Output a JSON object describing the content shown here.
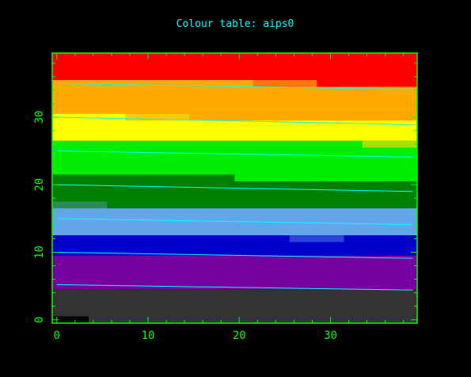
{
  "chart_data": {
    "type": "heatmap",
    "title": "Colour table: aips0",
    "xlabel": "",
    "ylabel": "",
    "xlim": [
      -0.5,
      39.5
    ],
    "ylim": [
      -0.5,
      39.5
    ],
    "xticks": [
      0,
      10,
      20,
      30
    ],
    "yticks": [
      0,
      10,
      20,
      30
    ],
    "colors": {
      "background": "#000000",
      "frame": "#00ff00",
      "title": "#00ffff",
      "contour": "#00ffff"
    },
    "bands": [
      {
        "y0": -0.5,
        "y1": 4.5,
        "color": "#333333"
      },
      {
        "y0": 4.5,
        "y1": 9.5,
        "color": "#7700a0"
      },
      {
        "y0": 9.5,
        "y1": 12.5,
        "color": "#0000cc"
      },
      {
        "y0": 12.5,
        "y1": 17.5,
        "color": "#62a5e9"
      },
      {
        "y0": 17.5,
        "y1": 21.5,
        "color": "#008000"
      },
      {
        "y0": 21.5,
        "y1": 26.5,
        "color": "#00ee00"
      },
      {
        "y0": 26.5,
        "y1": 30.5,
        "color": "#ffff00"
      },
      {
        "y0": 30.5,
        "y1": 35.5,
        "color": "#ffaa00"
      },
      {
        "y0": 35.5,
        "y1": 39.5,
        "color": "#ff0000"
      }
    ],
    "boundary_row_shifts": [
      {
        "y": 0,
        "x_split": 3.5,
        "left_color": "#000000",
        "right_color": "#333333"
      },
      {
        "y": 9,
        "x_split": 11.5,
        "left_color": "#7700a0",
        "right_color": "#7700a0"
      },
      {
        "y": 12,
        "x_split": 25.5,
        "left_color": "#0000cc",
        "mid_end": 31.5,
        "mid_color": "#2a40d8",
        "right_color": "#0000cc"
      },
      {
        "y": 17,
        "x_split": 5.5,
        "left_color": "#2e8b57",
        "right_color": "#008000"
      },
      {
        "y": 21,
        "x_split": 19.5,
        "left_color": "#008000",
        "right_color": "#00ee00"
      },
      {
        "y": 26,
        "x_split": 33.5,
        "left_color": "#00ee00",
        "right_color": "#a8e000"
      },
      {
        "y": 30,
        "x_split": 7.5,
        "left_color": "#ffff00",
        "mid_end": 14.5,
        "mid_color": "#ffcc00",
        "right_color": "#ffaa00"
      },
      {
        "y": 35,
        "x_split": 21.5,
        "left_color": "#ffaa00",
        "mid_end": 28.5,
        "mid_color": "#ff7700",
        "right_color": "#ff0000"
      }
    ],
    "contours": [
      {
        "level": 1,
        "y_left": 5.2,
        "y_right": 4.4
      },
      {
        "level": 2,
        "y_left": 10.0,
        "y_right": 9.1
      },
      {
        "level": 3,
        "y_left": 15.0,
        "y_right": 14.1
      },
      {
        "level": 4,
        "y_left": 20.0,
        "y_right": 19.0
      },
      {
        "level": 5,
        "y_left": 25.0,
        "y_right": 24.1
      },
      {
        "level": 6,
        "y_left": 30.0,
        "y_right": 28.9
      },
      {
        "level": 7,
        "y_left": 35.0,
        "y_right": 34.1
      }
    ]
  }
}
